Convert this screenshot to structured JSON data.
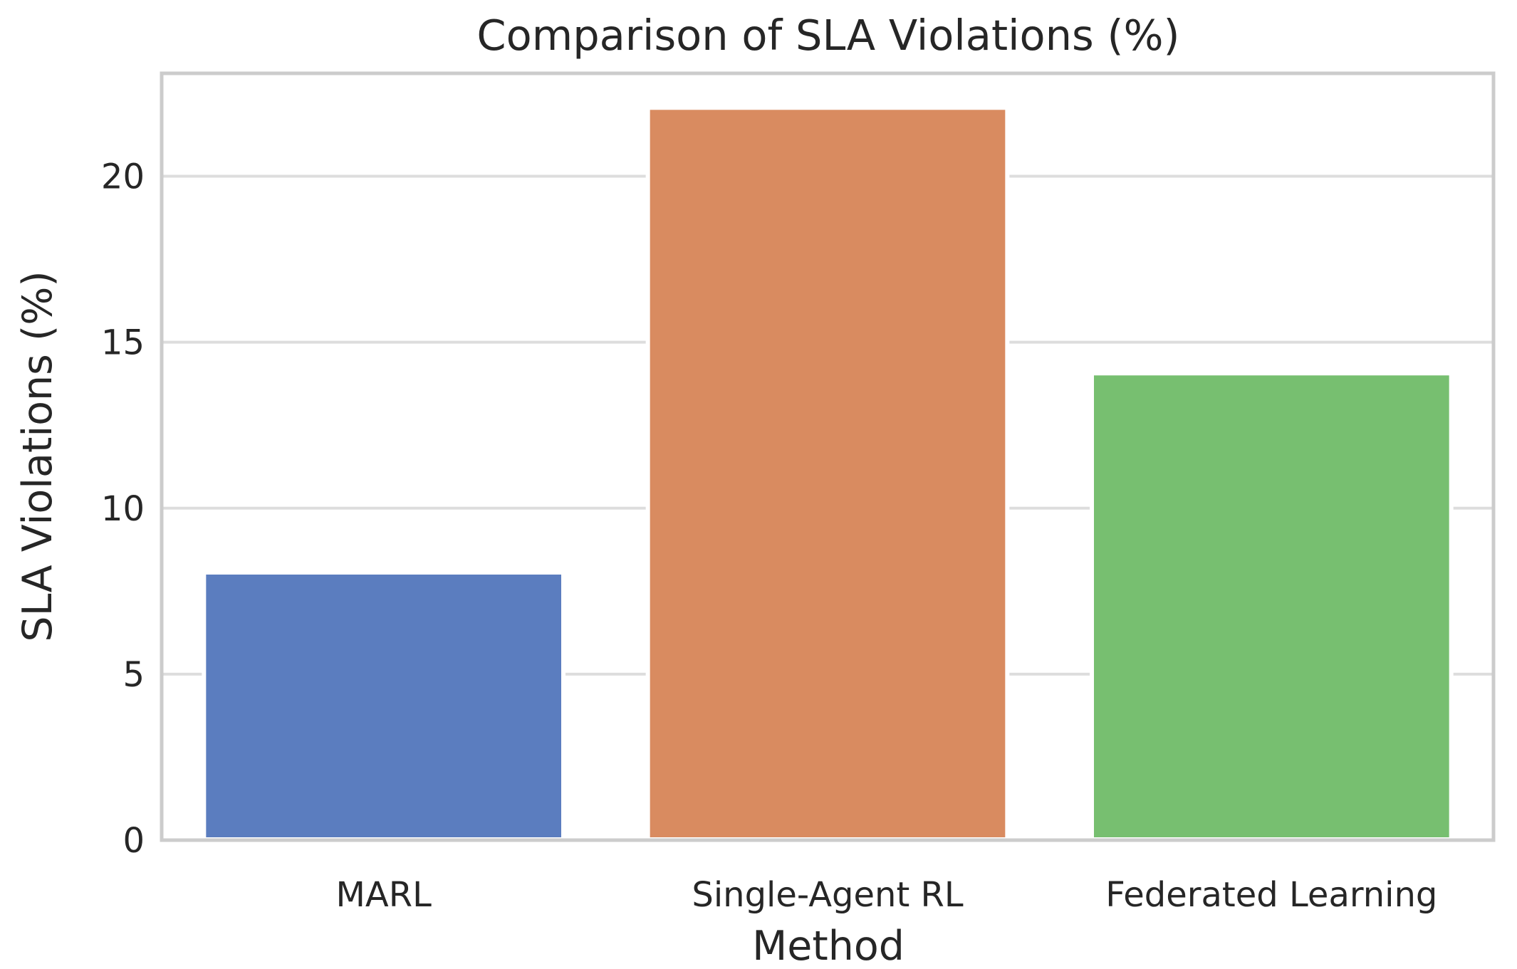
{
  "chart_data": {
    "type": "bar",
    "title": "Comparison of SLA Violations (%)",
    "xlabel": "Method",
    "ylabel": "SLA Violations (%)",
    "categories": [
      "MARL",
      "Single-Agent RL",
      "Federated Learning"
    ],
    "values": [
      8,
      22,
      14
    ],
    "colors": [
      "#5b7dbf",
      "#d98b60",
      "#77bf70"
    ],
    "ylim": [
      0,
      23.1
    ],
    "yticks": [
      0,
      5,
      10,
      15,
      20
    ],
    "grid": true,
    "legend": "none"
  }
}
